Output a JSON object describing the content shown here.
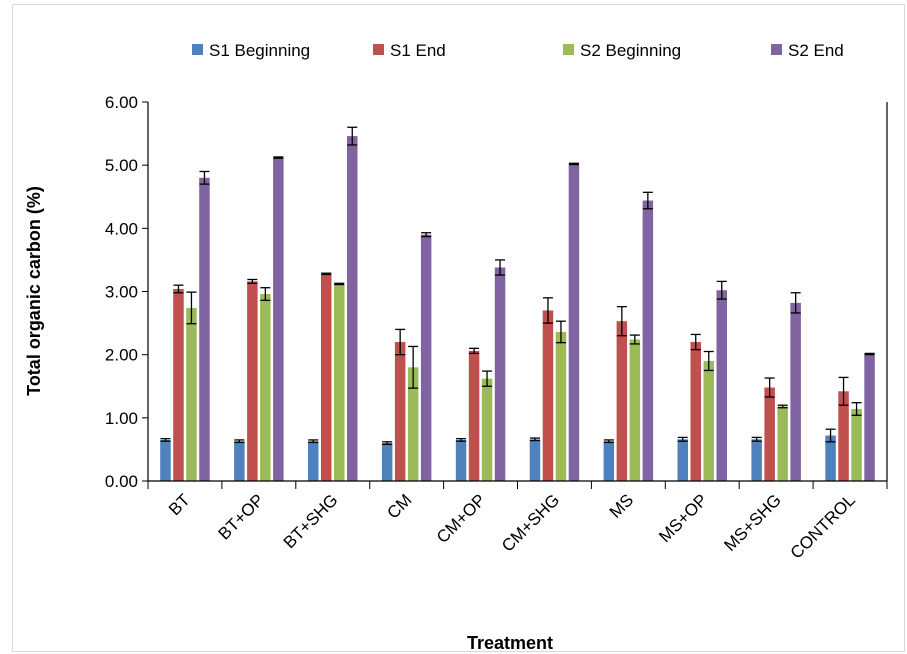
{
  "chart_data": {
    "type": "bar",
    "title": "",
    "xlabel": "Treatment",
    "ylabel": "Total organic carbon (%)",
    "ylim": [
      0,
      6
    ],
    "yticks": [
      "0.00",
      "1.00",
      "2.00",
      "3.00",
      "4.00",
      "5.00",
      "6.00"
    ],
    "legend_position": "top",
    "grid": false,
    "categories": [
      "BT",
      "BT+OP",
      "BT+SHG",
      "CM",
      "CM+OP",
      "CM+SHG",
      "MS",
      "MS+OP",
      "MS+SHG",
      "CONTROL"
    ],
    "series": [
      {
        "name": "S1 Beginning",
        "color": "#4f81bd",
        "values": [
          0.65,
          0.63,
          0.63,
          0.6,
          0.65,
          0.66,
          0.63,
          0.66,
          0.66,
          0.72
        ],
        "errors": [
          0.02,
          0.02,
          0.02,
          0.02,
          0.02,
          0.02,
          0.02,
          0.03,
          0.03,
          0.1
        ]
      },
      {
        "name": "S1 End",
        "color": "#c0504d",
        "values": [
          3.04,
          3.16,
          3.28,
          2.2,
          2.06,
          2.7,
          2.53,
          2.2,
          1.48,
          1.42
        ],
        "errors": [
          0.06,
          0.03,
          0.01,
          0.2,
          0.04,
          0.2,
          0.23,
          0.12,
          0.15,
          0.22
        ]
      },
      {
        "name": "S2 Beginning",
        "color": "#9bbb59",
        "values": [
          2.74,
          2.96,
          3.12,
          1.8,
          1.62,
          2.36,
          2.24,
          1.9,
          1.18,
          1.14
        ],
        "errors": [
          0.25,
          0.1,
          0.01,
          0.33,
          0.12,
          0.17,
          0.07,
          0.15,
          0.02,
          0.1
        ]
      },
      {
        "name": "S2 End",
        "color": "#8064a2",
        "values": [
          4.8,
          5.12,
          5.46,
          3.9,
          3.38,
          5.02,
          4.44,
          3.02,
          2.82,
          2.01
        ],
        "errors": [
          0.1,
          0.01,
          0.14,
          0.03,
          0.12,
          0.01,
          0.13,
          0.14,
          0.16,
          0.01
        ]
      }
    ]
  }
}
